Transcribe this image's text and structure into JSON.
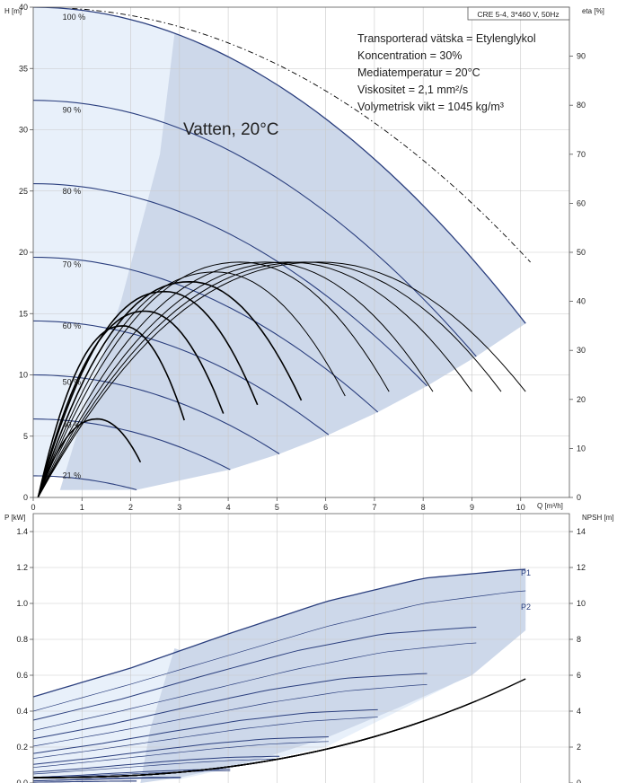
{
  "header": {
    "title": "CRE 5-4, 3*460 V, 50Hz"
  },
  "fluid_notes": [
    "Transporterad vätska = Etylenglykol",
    "Koncentration = 30%",
    "Mediatemperatur = 20°C",
    "Viskositet = 2,1 mm²/s",
    "Volymetrisk vikt = 1045 kg/m³"
  ],
  "water_label": "Vatten, 20°C",
  "colors": {
    "curve_blue": "#2b3f7e",
    "region_light": "#e8f0fa",
    "region_mid": "#cdd8ea",
    "black": "#000000"
  },
  "chart_data": [
    {
      "type": "line",
      "title": "",
      "xlabel": "Q [m³/h]",
      "ylabel": "H [m]",
      "ylabel_right": "eta [%]",
      "xlim": [
        0,
        11
      ],
      "ylim": [
        0,
        40
      ],
      "ylim_right": [
        0,
        100
      ],
      "x_ticks": [
        "0",
        "1",
        "2",
        "3",
        "4",
        "5",
        "6",
        "7",
        "8",
        "9",
        "10"
      ],
      "y_ticks": [
        "0",
        "5",
        "10",
        "15",
        "20",
        "25",
        "30",
        "35",
        "40"
      ],
      "y_ticks_right": [
        "0",
        "10",
        "20",
        "30",
        "40",
        "50",
        "60",
        "70",
        "80",
        "90"
      ],
      "grid": true,
      "speed_labels": [
        "100 %",
        "90 %",
        "80 %",
        "70 %",
        "60 %",
        "50 %",
        "40 %",
        "21 %"
      ],
      "head_curves": [
        {
          "speed": 100,
          "shutoff_head": 40.0,
          "max_flow": 10.1
        },
        {
          "speed": 90,
          "shutoff_head": 32.5,
          "max_flow": 9.2
        },
        {
          "speed": 80,
          "shutoff_head": 25.7,
          "max_flow": 8.2
        },
        {
          "speed": 70,
          "shutoff_head": 19.7,
          "max_flow": 7.2
        },
        {
          "speed": 60,
          "shutoff_head": 14.5,
          "max_flow": 6.2
        },
        {
          "speed": 50,
          "shutoff_head": 10.0,
          "max_flow": 5.2
        },
        {
          "speed": 40,
          "shutoff_head": 6.4,
          "max_flow": 4.2
        },
        {
          "speed": 21,
          "shutoff_head": 1.8,
          "max_flow": 2.2
        }
      ],
      "water_head_curve": {
        "shutoff_head": 40.0,
        "max_flow": 10.0,
        "style": "dash-dot"
      },
      "efficiency_peak_pct": [
        48,
        48,
        48,
        48,
        48,
        46,
        44,
        42,
        38,
        35,
        16
      ]
    },
    {
      "type": "line",
      "title": "",
      "xlabel": "",
      "ylabel": "P [kW]",
      "ylabel_right": "NPSH [m]",
      "xlim": [
        0,
        11
      ],
      "ylim": [
        0,
        1.5
      ],
      "ylim_right": [
        0,
        15
      ],
      "y_ticks": [
        "0.0",
        "0.2",
        "0.4",
        "0.6",
        "0.8",
        "1.0",
        "1.2",
        "1.4"
      ],
      "y_ticks_right": [
        "0",
        "2",
        "4",
        "6",
        "8",
        "10",
        "12",
        "14"
      ],
      "grid": true,
      "series": [
        {
          "name": "P1",
          "x": [
            0,
            2,
            4,
            6,
            8,
            10,
            10.1
          ],
          "values": [
            0.48,
            0.64,
            0.83,
            1.01,
            1.14,
            1.19,
            1.19
          ]
        },
        {
          "name": "P2",
          "x": [
            0,
            2,
            4,
            6,
            8,
            10,
            10.1
          ],
          "values": [
            0.4,
            0.55,
            0.71,
            0.87,
            1.0,
            1.07,
            1.07
          ]
        }
      ],
      "npsh_max_m": 5.5
    }
  ]
}
